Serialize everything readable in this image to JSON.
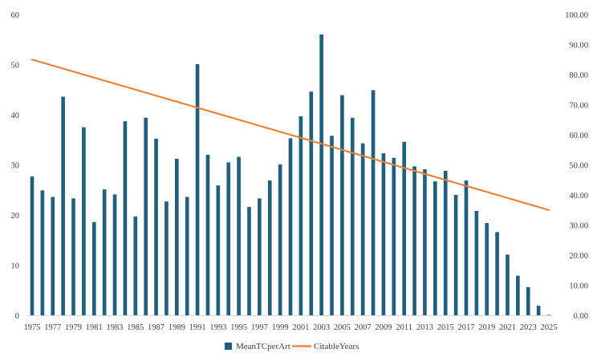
{
  "chart_data": {
    "type": "bar",
    "title": "",
    "xlabel": "",
    "ylabel": "",
    "x": [
      1975,
      1976,
      1977,
      1978,
      1979,
      1980,
      1981,
      1982,
      1983,
      1984,
      1985,
      1986,
      1987,
      1988,
      1989,
      1990,
      1991,
      1992,
      1993,
      1994,
      1995,
      1996,
      1997,
      1998,
      1999,
      2000,
      2001,
      2002,
      2003,
      2004,
      2005,
      2006,
      2007,
      2008,
      2009,
      2010,
      2011,
      2012,
      2013,
      2014,
      2015,
      2016,
      2017,
      2018,
      2019,
      2020,
      2021,
      2022,
      2023,
      2024,
      2025
    ],
    "x_tick_labels": [
      "1975",
      "1977",
      "1979",
      "1981",
      "1983",
      "1985",
      "1987",
      "1989",
      "1991",
      "1993",
      "1995",
      "1997",
      "1999",
      "2001",
      "2003",
      "2005",
      "2007",
      "2009",
      "2011",
      "2013",
      "2015",
      "2017",
      "2019",
      "2021",
      "2023",
      "2025"
    ],
    "ylim_left": [
      0,
      60
    ],
    "left_ticks": [
      "0",
      "10",
      "20",
      "30",
      "40",
      "50",
      "60"
    ],
    "ylim_right": [
      0,
      100
    ],
    "right_ticks": [
      "0.00",
      "10.00",
      "20.00",
      "30.00",
      "40.00",
      "50.00",
      "60.00",
      "70.00",
      "80.00",
      "90.00",
      "100.00"
    ],
    "series": [
      {
        "name": "MeanTCperArt",
        "type": "bar",
        "axis": "left",
        "color": "#1f5f7f",
        "values": [
          27.7,
          24.9,
          23.6,
          43.6,
          23.3,
          37.5,
          18.6,
          25.1,
          24.1,
          38.7,
          19.7,
          39.4,
          35.2,
          22.7,
          31.2,
          23.6,
          50.1,
          32.0,
          25.9,
          30.5,
          31.6,
          21.6,
          23.3,
          26.9,
          30.1,
          35.3,
          39.7,
          44.6,
          56.0,
          35.8,
          43.9,
          39.4,
          34.3,
          44.9,
          32.3,
          31.4,
          34.6,
          29.7,
          29.1,
          26.7,
          28.8,
          24.0,
          26.9,
          20.8,
          18.4,
          16.6,
          12.1,
          7.9,
          5.6,
          1.9,
          0.1
        ]
      },
      {
        "name": "CitableYears",
        "type": "line",
        "axis": "right",
        "color": "#ed7d31",
        "values": [
          85,
          84,
          83,
          82,
          81,
          80,
          79,
          78,
          77,
          76,
          75,
          74,
          73,
          72,
          71,
          70,
          69,
          68,
          67,
          66,
          65,
          64,
          63,
          62,
          61,
          60,
          59,
          58,
          57,
          56,
          55,
          54,
          53,
          52,
          51,
          50,
          49,
          48,
          47,
          46,
          45,
          44,
          43,
          42,
          41,
          40,
          39,
          38,
          37,
          36,
          35
        ]
      }
    ],
    "legend_position": "bottom",
    "grid": false
  }
}
